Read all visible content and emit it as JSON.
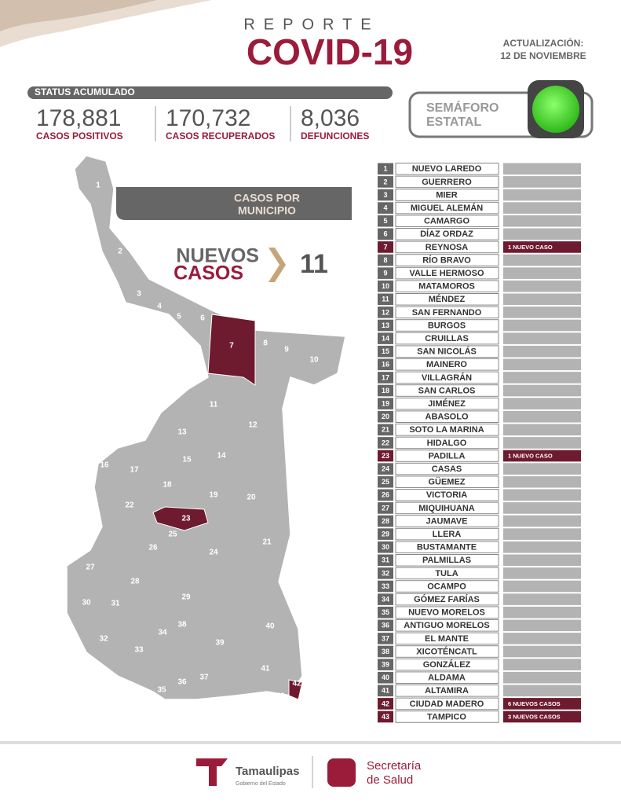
{
  "header": {
    "kicker": "REPORTE",
    "title": "COVID-19",
    "update_label": "ACTUALIZACIÓN:",
    "update_date": "12 DE NOVIEMBRE"
  },
  "status": {
    "label": "STATUS ACUMULADO",
    "stats": [
      {
        "value": "178,881",
        "label": "CASOS POSITIVOS"
      },
      {
        "value": "170,732",
        "label": "CASOS RECUPERADOS"
      },
      {
        "value": "8,036",
        "label": "DEFUNCIONES"
      }
    ]
  },
  "semaforo": {
    "label_lines": [
      "SEMÁFORO",
      "ESTATAL"
    ]
  },
  "map": {
    "banner_lines": [
      "CASOS POR",
      "MUNICIPIO"
    ],
    "new_cases_lines": [
      "NUEVOS",
      "CASOS"
    ],
    "new_cases_count": "11"
  },
  "table": {
    "rows": [
      {
        "number": "1",
        "name": "NUEVO LAREDO"
      },
      {
        "number": "2",
        "name": "GUERRERO"
      },
      {
        "number": "3",
        "name": "MIER"
      },
      {
        "number": "4",
        "name": "MIGUEL ALEMÁN"
      },
      {
        "number": "5",
        "name": "CAMARGO"
      },
      {
        "number": "6",
        "name": "DÍAZ ORDAZ"
      },
      {
        "number": "7",
        "name": "REYNOSA",
        "note": "1 NUEVO CASO"
      },
      {
        "number": "8",
        "name": "RÍO BRAVO"
      },
      {
        "number": "9",
        "name": "VALLE HERMOSO"
      },
      {
        "number": "10",
        "name": "MATAMOROS"
      },
      {
        "number": "11",
        "name": "MÉNDEZ"
      },
      {
        "number": "12",
        "name": "SAN FERNANDO"
      },
      {
        "number": "13",
        "name": "BURGOS"
      },
      {
        "number": "14",
        "name": "CRUILLAS"
      },
      {
        "number": "15",
        "name": "SAN NICOLÁS"
      },
      {
        "number": "16",
        "name": "MAINERO"
      },
      {
        "number": "17",
        "name": "VILLAGRÁN"
      },
      {
        "number": "18",
        "name": "SAN CARLOS"
      },
      {
        "number": "19",
        "name": "JIMÉNEZ"
      },
      {
        "number": "20",
        "name": "ABASOLO"
      },
      {
        "number": "21",
        "name": "SOTO LA MARINA"
      },
      {
        "number": "22",
        "name": "HIDALGO"
      },
      {
        "number": "23",
        "name": "PADILLA",
        "note": "1 NUEVO CASO"
      },
      {
        "number": "24",
        "name": "CASAS"
      },
      {
        "number": "25",
        "name": "GÜEMEZ"
      },
      {
        "number": "26",
        "name": "VICTORIA"
      },
      {
        "number": "27",
        "name": "MIQUIHUANA"
      },
      {
        "number": "28",
        "name": "JAUMAVE"
      },
      {
        "number": "29",
        "name": "LLERA"
      },
      {
        "number": "30",
        "name": "BUSTAMANTE"
      },
      {
        "number": "31",
        "name": "PALMILLAS"
      },
      {
        "number": "32",
        "name": "TULA"
      },
      {
        "number": "33",
        "name": "OCAMPO"
      },
      {
        "number": "34",
        "name": "GÓMEZ FARÍAS"
      },
      {
        "number": "35",
        "name": "NUEVO MORELOS"
      },
      {
        "number": "36",
        "name": "ANTIGUO MORELOS"
      },
      {
        "number": "37",
        "name": "EL MANTE"
      },
      {
        "number": "38",
        "name": "XICOTÉNCATL"
      },
      {
        "number": "39",
        "name": "GONZÁLEZ"
      },
      {
        "number": "40",
        "name": "ALDAMA"
      },
      {
        "number": "41",
        "name": "ALTAMIRA"
      },
      {
        "number": "42",
        "name": "CIUDAD MADERO",
        "note": "6 NUEVOS CASOS"
      },
      {
        "number": "43",
        "name": "TAMPICO",
        "note": "3 NUEVOS CASOS"
      }
    ]
  },
  "footer": {
    "brand": "Tamaulipas",
    "brand_sub": "Gobierno del Estado",
    "health_lines": [
      "Secretaría",
      "de Salud"
    ]
  }
}
